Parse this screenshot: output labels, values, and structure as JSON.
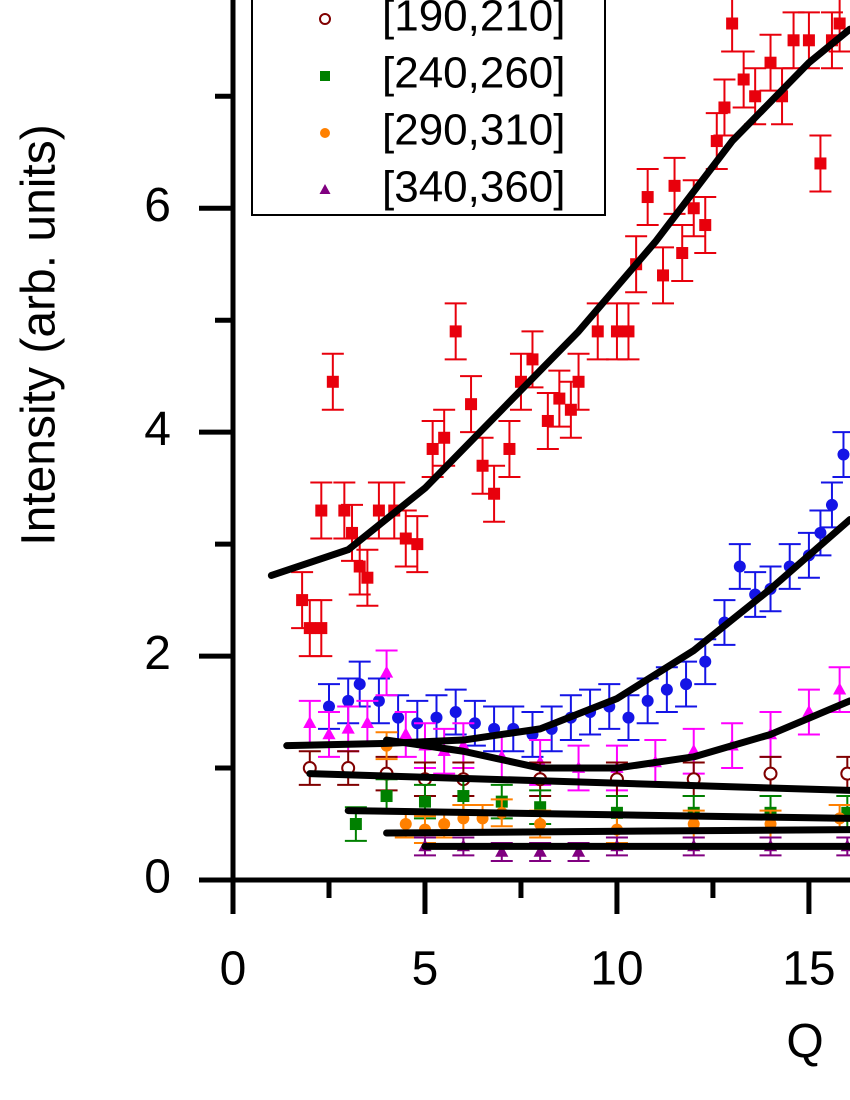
{
  "chart_data": {
    "type": "scatter",
    "y_label": "Intensity (arb. units)",
    "x_label": "Q",
    "xlim": [
      0,
      16.07
    ],
    "ylim": [
      0,
      7.86
    ],
    "xticks": [
      0,
      5,
      10,
      15
    ],
    "yticks": [
      0,
      2,
      4,
      6
    ],
    "xminor": [
      2.5,
      7.5,
      12.5
    ],
    "yminor": [
      1,
      3,
      5,
      7
    ],
    "legend": "upper left",
    "series": [
      {
        "color": "#e8000c",
        "marker": "square",
        "error": 0.25,
        "x": [
          1.8,
          2.0,
          2.3,
          2.3,
          2.6,
          2.9,
          3.1,
          3.3,
          3.5,
          3.8,
          4.2,
          4.5,
          4.8,
          5.2,
          5.5,
          5.8,
          6.2,
          6.5,
          6.8,
          7.2,
          7.5,
          7.8,
          8.2,
          8.5,
          8.8,
          9.0,
          9.5,
          10.0,
          10.3,
          10.5,
          10.8,
          11.2,
          11.5,
          11.7,
          12.0,
          12.3,
          12.6,
          12.8,
          13.0,
          13.3,
          13.6,
          14.0,
          14.3,
          14.6,
          15.0,
          15.3,
          15.6,
          15.8
        ],
        "values": [
          2.5,
          2.25,
          2.25,
          3.3,
          4.45,
          3.3,
          3.1,
          2.8,
          2.7,
          3.3,
          3.3,
          3.05,
          3.0,
          3.85,
          3.95,
          4.9,
          4.25,
          3.7,
          3.45,
          3.85,
          4.45,
          4.65,
          4.1,
          4.3,
          4.2,
          4.45,
          4.9,
          4.9,
          4.9,
          5.5,
          6.1,
          5.4,
          6.2,
          5.6,
          6.0,
          5.85,
          6.6,
          6.9,
          7.65,
          7.15,
          7.0,
          7.3,
          7.0,
          7.5,
          7.5,
          6.4,
          7.5,
          7.65
        ]
      },
      {
        "color": "#1414e6",
        "marker": "circle",
        "error": 0.2,
        "x": [
          2.5,
          3.0,
          3.3,
          3.8,
          4.3,
          4.8,
          5.3,
          5.8,
          6.3,
          6.8,
          7.3,
          7.8,
          8.3,
          8.8,
          9.3,
          9.8,
          10.3,
          10.8,
          11.3,
          11.8,
          12.3,
          12.8,
          13.2,
          13.6,
          14.0,
          14.5,
          15.0,
          15.3,
          15.6,
          15.9
        ],
        "values": [
          1.55,
          1.6,
          1.75,
          1.6,
          1.45,
          1.4,
          1.45,
          1.5,
          1.4,
          1.35,
          1.35,
          1.3,
          1.35,
          1.45,
          1.5,
          1.55,
          1.45,
          1.6,
          1.7,
          1.75,
          1.95,
          2.3,
          2.8,
          2.55,
          2.6,
          2.8,
          2.9,
          3.1,
          3.35,
          3.8
        ]
      },
      {
        "color": "#ff00ff",
        "marker": "triangle",
        "error": 0.2,
        "x": [
          2.0,
          2.5,
          3.0,
          3.5,
          4.0,
          4.5,
          5.0,
          5.5,
          6.0,
          7.0,
          8.0,
          9.0,
          10.0,
          11.0,
          12.0,
          13.0,
          14.0,
          15.0,
          15.8
        ],
        "values": [
          1.4,
          1.3,
          1.35,
          1.4,
          1.85,
          1.3,
          1.2,
          1.15,
          1.2,
          1.1,
          1.05,
          1.0,
          1.0,
          1.05,
          1.15,
          1.2,
          1.3,
          1.5,
          1.7
        ]
      },
      {
        "name": "[190,210]",
        "color": "#800000",
        "marker": "open-circle",
        "error": 0.15,
        "x": [
          2,
          3,
          4,
          5,
          6,
          8,
          10,
          12,
          14,
          16
        ],
        "values": [
          1.0,
          1.0,
          0.95,
          0.9,
          0.9,
          0.9,
          0.9,
          0.9,
          0.95,
          0.95
        ]
      },
      {
        "name": "[240,260]",
        "color": "#008000",
        "marker": "square",
        "error": 0.15,
        "x": [
          3.2,
          4,
          5,
          6,
          7,
          8,
          10,
          12,
          14,
          16
        ],
        "values": [
          0.5,
          0.75,
          0.7,
          0.75,
          0.7,
          0.65,
          0.6,
          0.6,
          0.6,
          0.6
        ]
      },
      {
        "name": "[290,310]",
        "color": "#ff8000",
        "marker": "circle",
        "error": 0.12,
        "x": [
          4,
          4.5,
          5,
          5.5,
          6,
          6.5,
          7,
          8,
          10,
          12,
          14,
          15.8
        ],
        "values": [
          1.2,
          0.5,
          0.45,
          0.5,
          0.55,
          0.55,
          0.6,
          0.5,
          0.45,
          0.5,
          0.5,
          0.55
        ]
      },
      {
        "name": "[340,360]",
        "color": "#800080",
        "marker": "triangle",
        "error": 0.08,
        "x": [
          5,
          6,
          7,
          8,
          9,
          10,
          12,
          14,
          16
        ],
        "values": [
          0.3,
          0.3,
          0.25,
          0.25,
          0.25,
          0.3,
          0.3,
          0.3,
          0.3
        ]
      },
      {
        "color": "#000000",
        "x": [
          1,
          3,
          5,
          7,
          9,
          11,
          13,
          15,
          16.07
        ],
        "values": [
          2.72,
          2.95,
          3.5,
          4.2,
          4.9,
          5.7,
          6.6,
          7.3,
          7.6
        ]
      },
      {
        "color": "#000000",
        "x": [
          1.4,
          4,
          6,
          8,
          10,
          12,
          14,
          16.07
        ],
        "values": [
          1.2,
          1.22,
          1.25,
          1.35,
          1.62,
          2.05,
          2.6,
          3.22
        ]
      },
      {
        "color": "#000000",
        "x": [
          4,
          6,
          8,
          10,
          12,
          14,
          16.07
        ],
        "values": [
          1.25,
          1.15,
          1.0,
          1.0,
          1.1,
          1.3,
          1.6
        ]
      },
      {
        "color": "#000000",
        "x": [
          2,
          16.07
        ],
        "values": [
          0.95,
          0.8
        ]
      },
      {
        "color": "#000000",
        "x": [
          3,
          16.07
        ],
        "values": [
          0.62,
          0.55
        ]
      },
      {
        "color": "#000000",
        "x": [
          4,
          16.07
        ],
        "values": [
          0.42,
          0.45
        ]
      },
      {
        "color": "#000000",
        "x": [
          5,
          16.07
        ],
        "values": [
          0.3,
          0.3
        ]
      }
    ]
  }
}
